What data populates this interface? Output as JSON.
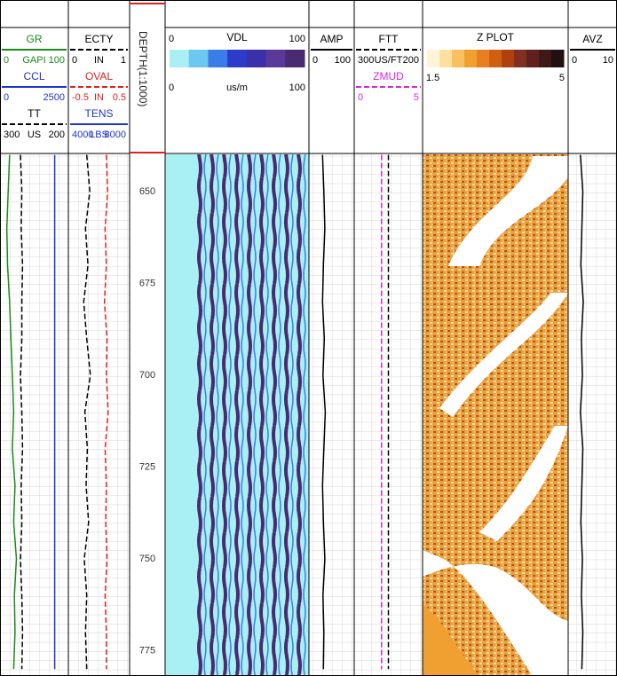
{
  "depth_title": "DEPTH(1:1000)",
  "depth_labels": [
    650,
    675,
    700,
    725,
    750,
    775
  ],
  "depths": [
    640,
    650,
    660,
    670,
    680,
    690,
    700,
    710,
    720,
    730,
    740,
    750,
    760,
    770,
    780
  ],
  "tracks": [
    {
      "rows": [
        {
          "title": "GR",
          "color": "#1a8a1a",
          "left": 0,
          "unit": "GAPI",
          "right": 100,
          "values": [
            14,
            12,
            10,
            11,
            14,
            16,
            18,
            20,
            18,
            22,
            20,
            24,
            21,
            22,
            20
          ]
        },
        {
          "title": "CCL",
          "color": "#2233cc",
          "left": 0,
          "right": 2500,
          "values": [
            2000,
            2000,
            2000,
            2000,
            2000,
            2000,
            2000,
            2000,
            2000,
            2000,
            2000,
            2000,
            2000,
            2000,
            2000
          ]
        },
        {
          "title": "TT",
          "color": "#000000",
          "dash": true,
          "left": 300,
          "unit": "US",
          "right": 200,
          "values": [
            270,
            268,
            269,
            267,
            268,
            268,
            270,
            268,
            267,
            269,
            268,
            270,
            268,
            267,
            268
          ]
        }
      ]
    },
    {
      "rows": [
        {
          "title": "ECTY",
          "color": "#000000",
          "dash": true,
          "left": 0,
          "unit": "IN",
          "right": 1,
          "values": [
            0.3,
            0.35,
            0.28,
            0.32,
            0.25,
            0.3,
            0.36,
            0.27,
            0.31,
            0.29,
            0.33,
            0.26,
            0.3,
            0.28,
            0.3
          ]
        },
        {
          "title": "OVAL",
          "color": "#dd2222",
          "dash": true,
          "left": -0.5,
          "unit": "IN",
          "right": 0.5,
          "values": [
            0.12,
            0.14,
            0.1,
            0.12,
            0.09,
            0.13,
            0.12,
            0.15,
            0.1,
            0.12,
            0.11,
            0.13,
            0.1,
            0.12,
            0.12
          ]
        },
        {
          "title": "TENS",
          "color": "#2233cc",
          "left": 4000,
          "unit": "LBS",
          "right": 8000
        }
      ]
    },
    {
      "rows": []
    },
    {
      "rows": [
        {
          "title": "VDL",
          "color": "#000000",
          "left": 0,
          "right": 100,
          "colors": [
            "#a8f0f4",
            "#6cc8f0",
            "#3c7ce8",
            "#2c3cc8",
            "#3a30a8",
            "#5a3a98",
            "#4a2a70"
          ]
        },
        {
          "color": "#000000",
          "left": 0,
          "unit": "us/m",
          "right": 100
        }
      ]
    },
    {
      "rows": [
        {
          "title": "AMP",
          "color": "#000000",
          "left": 0,
          "right": 100,
          "values": [
            30,
            33,
            35,
            32,
            30,
            34,
            31,
            36,
            33,
            30,
            32,
            35,
            31,
            33,
            32
          ]
        }
      ]
    },
    {
      "rows": [
        {
          "title": "FTT",
          "color": "#000000",
          "dash": true,
          "left": 300,
          "unit": "US/FT",
          "right": 200,
          "values": [
            250,
            250,
            250,
            250,
            250,
            250,
            250,
            250,
            250,
            250,
            250,
            250,
            250,
            250,
            250
          ]
        },
        {
          "title": "ZMUD",
          "color": "#dd22dd",
          "dash": true,
          "left": 0,
          "right": 5,
          "values": [
            2,
            2,
            2,
            2,
            2,
            2,
            2,
            2,
            2,
            2,
            2,
            2,
            2,
            2,
            2
          ]
        }
      ]
    },
    {
      "rows": [
        {
          "title": "Z PLOT",
          "color": "#000000",
          "left": 1.5,
          "right": 5,
          "colors": [
            "#fff4d8",
            "#fde0a0",
            "#f8c060",
            "#f0a030",
            "#e88020",
            "#d06010",
            "#b04010",
            "#803020",
            "#602020",
            "#401818",
            "#201010"
          ]
        }
      ]
    },
    {
      "rows": [
        {
          "title": "AVZ",
          "color": "#000000",
          "left": 0,
          "right": 10,
          "values": [
            2.5,
            3,
            2.8,
            2.6,
            3.1,
            2.7,
            2.9,
            2.5,
            3,
            2.8,
            2.6,
            2.9,
            2.7,
            3,
            2.8
          ]
        }
      ]
    }
  ]
}
